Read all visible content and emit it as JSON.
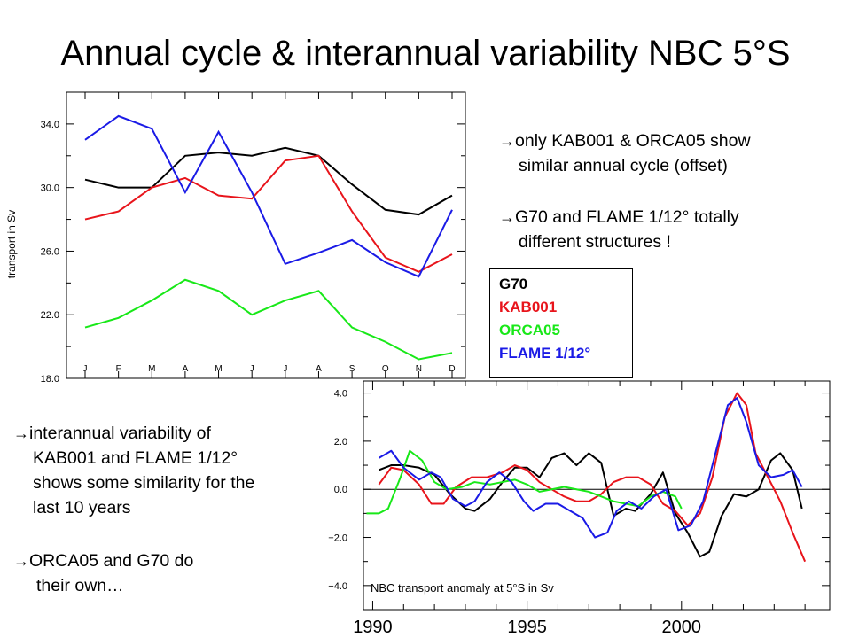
{
  "title": "Annual cycle & interannual variability NBC 5°S",
  "bullets_top": [
    {
      "text": "only KAB001 & ORCA05 show",
      "cont": "similar annual cycle (offset)"
    },
    {
      "text": "G70 and FLAME 1/12° totally",
      "cont": "different structures !"
    }
  ],
  "bullets_bottom": [
    {
      "text": "interannual variability of",
      "cont": [
        "KAB001 and FLAME 1/12°",
        "shows some similarity for the",
        "last 10 years"
      ]
    },
    {
      "text": "ORCA05 and G70 do",
      "cont": [
        "their own…"
      ]
    }
  ],
  "arrow_glyph": "→",
  "legend": [
    {
      "name": "G70",
      "color": "#000000"
    },
    {
      "name": "KAB001",
      "color": "#e8141b"
    },
    {
      "name": "ORCA05",
      "color": "#18e818"
    },
    {
      "name": "FLAME 1/12°",
      "color": "#1a1ae6"
    }
  ],
  "chart_data": [
    {
      "type": "line",
      "ylabel": "transport in Sv",
      "categories": [
        "J",
        "F",
        "M",
        "A",
        "M",
        "J",
        "J",
        "A",
        "S",
        "O",
        "N",
        "D"
      ],
      "ylim": [
        18.0,
        36.0
      ],
      "yticks": [
        "18.0",
        "22.0",
        "26.0",
        "30.0",
        "34.0"
      ],
      "ytick_values": [
        18,
        22,
        26,
        30,
        34
      ],
      "series": [
        {
          "name": "G70",
          "color": "#000000",
          "values": [
            30.5,
            30.0,
            30.0,
            32.0,
            32.2,
            32.0,
            32.5,
            32.0,
            30.2,
            28.6,
            28.3,
            29.5
          ]
        },
        {
          "name": "KAB001",
          "color": "#e8141b",
          "values": [
            28.0,
            28.5,
            30.0,
            30.6,
            29.5,
            29.3,
            31.7,
            32.0,
            28.5,
            25.6,
            24.7,
            25.8
          ]
        },
        {
          "name": "ORCA05",
          "color": "#18e818",
          "values": [
            21.2,
            21.8,
            22.9,
            24.2,
            23.5,
            22.0,
            22.9,
            23.5,
            21.2,
            20.3,
            19.2,
            19.6
          ]
        },
        {
          "name": "FLAME 1/12°",
          "color": "#1a1ae6",
          "values": [
            33.0,
            34.5,
            33.7,
            29.7,
            33.5,
            29.7,
            25.2,
            25.9,
            26.7,
            25.3,
            24.4,
            28.6
          ]
        }
      ]
    },
    {
      "type": "line",
      "title": "NBC transport anomaly at 5°S in Sv",
      "xlim": [
        1989.7,
        2004.8
      ],
      "xticks": [
        "1990",
        "1995",
        "2000"
      ],
      "xtick_values": [
        1990,
        1995,
        2000
      ],
      "ylim": [
        -5.0,
        4.5
      ],
      "yticks": [
        "4.0",
        "2.0",
        "0.0",
        "−2.0",
        "−4.0"
      ],
      "ytick_values": [
        4,
        2,
        0,
        -2,
        -4
      ],
      "series": [
        {
          "name": "G70",
          "color": "#000000",
          "x": [
            1990.2,
            1990.6,
            1991.0,
            1991.5,
            1992.0,
            1992.5,
            1993.0,
            1993.3,
            1993.8,
            1994.2,
            1994.6,
            1995.0,
            1995.4,
            1995.8,
            1996.2,
            1996.6,
            1997.0,
            1997.4,
            1997.8,
            1998.2,
            1998.5,
            1999.0,
            1999.4,
            1999.8,
            2000.2,
            2000.6,
            2000.9,
            2001.3,
            2001.7,
            2002.1,
            2002.5,
            2002.9,
            2003.2,
            2003.6,
            2003.9
          ],
          "y": [
            0.8,
            1.0,
            1.0,
            0.9,
            0.6,
            -0.2,
            -0.8,
            -0.9,
            -0.4,
            0.3,
            0.9,
            0.9,
            0.5,
            1.3,
            1.5,
            1.0,
            1.5,
            1.1,
            -1.1,
            -0.8,
            -0.9,
            -0.2,
            0.7,
            -1.0,
            -1.8,
            -2.8,
            -2.6,
            -1.1,
            -0.2,
            -0.3,
            0.0,
            1.2,
            1.5,
            0.8,
            -0.8
          ]
        },
        {
          "name": "KAB001",
          "color": "#e8141b",
          "x": [
            1990.2,
            1990.6,
            1991.0,
            1991.5,
            1991.9,
            1992.3,
            1992.7,
            1993.2,
            1993.7,
            1994.2,
            1994.6,
            1995.0,
            1995.4,
            1995.8,
            1996.2,
            1996.6,
            1997.0,
            1997.4,
            1997.8,
            1998.2,
            1998.6,
            1999.0,
            1999.4,
            1999.8,
            2000.2,
            2000.6,
            2001.0,
            2001.4,
            2001.8,
            2002.1,
            2002.4,
            2002.8,
            2003.2,
            2003.6,
            2004.0
          ],
          "y": [
            0.2,
            0.9,
            0.8,
            0.2,
            -0.6,
            -0.6,
            0.1,
            0.5,
            0.5,
            0.7,
            1.0,
            0.8,
            0.3,
            0.0,
            -0.3,
            -0.5,
            -0.5,
            -0.2,
            0.3,
            0.5,
            0.5,
            0.2,
            -0.6,
            -0.9,
            -1.5,
            -1.0,
            0.5,
            3.0,
            4.0,
            3.5,
            1.5,
            0.5,
            -0.5,
            -1.8,
            -3.0
          ]
        },
        {
          "name": "ORCA05",
          "color": "#18e818",
          "x": [
            1989.8,
            1990.2,
            1990.5,
            1990.9,
            1991.2,
            1991.6,
            1992.0,
            1992.4,
            1992.9,
            1993.3,
            1993.8,
            1994.2,
            1994.6,
            1995.0,
            1995.4,
            1995.8,
            1996.2,
            1996.6,
            1997.0,
            1997.4,
            1997.8,
            1998.2,
            1998.6,
            1999.0,
            1999.4,
            1999.8,
            2000.0
          ],
          "y": [
            -1.0,
            -1.0,
            -0.8,
            0.5,
            1.6,
            1.2,
            0.3,
            0.0,
            0.1,
            0.3,
            0.2,
            0.3,
            0.4,
            0.2,
            -0.1,
            0.0,
            0.1,
            0.0,
            -0.1,
            -0.3,
            -0.5,
            -0.6,
            -0.7,
            -0.3,
            -0.1,
            -0.3,
            -0.8
          ]
        },
        {
          "name": "FLAME 1/12°",
          "color": "#1a1ae6",
          "x": [
            1990.2,
            1990.6,
            1991.0,
            1991.5,
            1991.9,
            1992.2,
            1992.6,
            1993.0,
            1993.3,
            1993.7,
            1994.1,
            1994.5,
            1994.9,
            1995.2,
            1995.6,
            1996.0,
            1996.4,
            1996.8,
            1997.2,
            1997.6,
            1997.9,
            1998.3,
            1998.7,
            1999.1,
            1999.5,
            1999.9,
            2000.3,
            2000.7,
            2001.1,
            2001.5,
            2001.8,
            2002.1,
            2002.5,
            2002.9,
            2003.3,
            2003.6,
            2003.9
          ],
          "y": [
            1.3,
            1.6,
            0.9,
            0.4,
            0.7,
            0.5,
            -0.4,
            -0.7,
            -0.5,
            0.3,
            0.7,
            0.3,
            -0.5,
            -0.9,
            -0.6,
            -0.6,
            -0.9,
            -1.2,
            -2.0,
            -1.8,
            -0.9,
            -0.5,
            -0.8,
            -0.3,
            0.0,
            -1.7,
            -1.5,
            -0.5,
            1.5,
            3.5,
            3.8,
            2.8,
            1.0,
            0.5,
            0.6,
            0.8,
            0.1
          ]
        }
      ]
    }
  ]
}
